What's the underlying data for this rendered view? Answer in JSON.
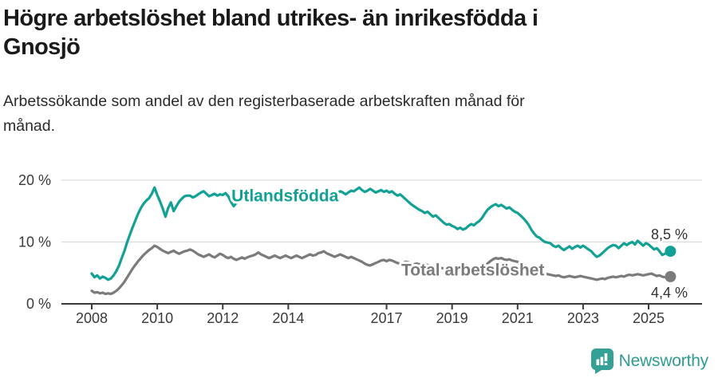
{
  "header": {
    "title_lines": [
      "Högre arbetslöshet bland utrikes- än inrikesfödda i",
      "Gnosjö"
    ],
    "subtitle_lines": [
      "Arbetssökande som andel av den registerbaserade arbetskraften månad för",
      "månad."
    ]
  },
  "footer": {
    "brand": "Newsworthy",
    "logo_icon": "bar-chart-speech-bubble",
    "brand_color": "#2f9c92"
  },
  "colors": {
    "foreign_born_line": "#12a195",
    "total_line": "#7b7b7b",
    "axis": "#3a3a3a",
    "gridline": "#dddddd",
    "value_label": "#333333",
    "title": "#1a1a1a"
  },
  "chart_data": {
    "type": "line",
    "title": "Högre arbetslöshet bland utrikes- än inrikesfödda i Gnosjö",
    "subtitle": "Arbetssökande som andel av den registerbaserade arbetskraften månad för månad.",
    "unit": "%",
    "x_start_year": 2008,
    "points_per_year": 12,
    "x_tick_years": [
      2008,
      2010,
      2012,
      2014,
      2017,
      2019,
      2021,
      2023,
      2025
    ],
    "x_tick_labels": [
      "2008",
      "2010",
      "2012",
      "2014",
      "2017",
      "2019",
      "2021",
      "2023",
      "2025"
    ],
    "y_ticks": [
      {
        "value": 0,
        "label": "0 %"
      },
      {
        "value": 10,
        "label": "10 %"
      },
      {
        "value": 20,
        "label": "20 %"
      }
    ],
    "ylim": [
      0,
      21
    ],
    "grid": true,
    "legend_position": "inline-labels",
    "series": [
      {
        "name": "Utlandsfödda",
        "color": "#12a195",
        "end_label": "8,5 %",
        "end_value": 8.5,
        "label_pos": {
          "x_year": 2013.9,
          "y_value": 16.6,
          "anchor": "middle"
        },
        "end_label_dy": -15,
        "values": [
          4.9,
          4.3,
          4.6,
          4.1,
          4.4,
          4.2,
          3.9,
          4.1,
          4.6,
          5.3,
          6.2,
          7.4,
          8.6,
          10.0,
          11.2,
          12.4,
          13.5,
          14.6,
          15.5,
          16.2,
          16.7,
          17.1,
          17.8,
          18.8,
          17.6,
          16.6,
          15.4,
          14.1,
          15.5,
          16.4,
          15.0,
          15.8,
          16.5,
          17.0,
          17.4,
          17.5,
          17.5,
          17.2,
          17.4,
          17.7,
          18.0,
          18.2,
          17.8,
          17.4,
          17.6,
          17.8,
          17.5,
          17.7,
          17.6,
          17.9,
          17.4,
          16.5,
          15.8,
          16.3,
          17.0,
          17.4,
          17.2,
          16.8,
          17.0,
          17.3,
          17.2,
          17.5,
          17.8,
          17.4,
          17.0,
          16.4,
          16.8,
          17.3,
          17.7,
          18.0,
          17.6,
          17.4,
          17.8,
          18.1,
          18.3,
          17.9,
          17.5,
          17.1,
          17.4,
          17.8,
          17.5,
          17.2,
          17.6,
          17.9,
          18.0,
          18.3,
          18.5,
          18.2,
          17.8,
          17.5,
          17.9,
          18.2,
          18.0,
          17.7,
          18.0,
          18.3,
          18.2,
          18.5,
          18.8,
          18.4,
          18.1,
          18.3,
          18.6,
          18.3,
          18.0,
          18.2,
          18.4,
          18.1,
          18.3,
          18.0,
          18.2,
          17.8,
          17.5,
          17.7,
          17.3,
          16.9,
          16.5,
          16.1,
          15.8,
          15.5,
          15.2,
          15.0,
          14.7,
          14.9,
          14.5,
          14.1,
          14.3,
          13.9,
          13.5,
          13.1,
          12.8,
          12.9,
          12.6,
          12.4,
          12.1,
          12.3,
          12.0,
          12.2,
          12.6,
          12.9,
          12.7,
          13.1,
          13.4,
          13.9,
          14.6,
          15.2,
          15.6,
          15.9,
          16.1,
          15.8,
          16.0,
          15.7,
          15.4,
          15.6,
          15.2,
          14.9,
          14.7,
          14.3,
          13.9,
          13.4,
          12.8,
          12.0,
          11.4,
          10.9,
          10.7,
          10.3,
          10.0,
          9.9,
          9.8,
          9.4,
          9.2,
          9.4,
          9.0,
          8.7,
          9.0,
          9.3,
          8.9,
          9.2,
          9.4,
          9.1,
          9.4,
          9.1,
          8.8,
          8.5,
          8.0,
          7.6,
          7.8,
          8.2,
          8.6,
          9.0,
          9.3,
          9.5,
          9.4,
          9.0,
          9.4,
          9.8,
          9.5,
          9.8,
          10.0,
          9.6,
          10.2,
          9.8,
          9.4,
          9.8,
          9.6,
          9.2,
          8.8,
          9.0,
          8.5,
          7.9,
          8.1,
          8.3,
          8.5
        ]
      },
      {
        "name": "Total arbetslöshet",
        "color": "#7b7b7b",
        "end_label": "4,4 %",
        "end_value": 4.4,
        "label_pos": {
          "x_year": 2017.45,
          "y_value": 4.6,
          "anchor": "start"
        },
        "end_label_dy": 26,
        "values": [
          2.1,
          1.8,
          1.9,
          1.7,
          1.8,
          1.6,
          1.7,
          1.6,
          1.8,
          2.1,
          2.5,
          3.0,
          3.6,
          4.3,
          5.0,
          5.7,
          6.3,
          6.9,
          7.4,
          7.9,
          8.3,
          8.7,
          9.0,
          9.4,
          9.2,
          8.9,
          8.6,
          8.4,
          8.2,
          8.4,
          8.6,
          8.3,
          8.1,
          8.3,
          8.5,
          8.6,
          8.8,
          8.6,
          8.3,
          8.0,
          7.8,
          7.6,
          7.8,
          8.0,
          7.7,
          7.5,
          7.8,
          8.1,
          7.9,
          7.6,
          7.4,
          7.6,
          7.3,
          7.1,
          7.3,
          7.5,
          7.3,
          7.5,
          7.7,
          7.8,
          8.0,
          8.3,
          8.0,
          7.8,
          7.6,
          7.4,
          7.6,
          7.8,
          7.6,
          7.4,
          7.6,
          7.8,
          7.6,
          7.4,
          7.6,
          7.8,
          7.6,
          7.4,
          7.6,
          7.8,
          8.0,
          7.8,
          7.9,
          8.2,
          8.3,
          8.5,
          8.2,
          8.0,
          7.8,
          7.6,
          7.8,
          8.0,
          7.8,
          7.6,
          7.4,
          7.6,
          7.4,
          7.2,
          7.0,
          6.8,
          6.5,
          6.3,
          6.2,
          6.4,
          6.6,
          6.8,
          7.0,
          7.1,
          6.9,
          7.1,
          7.0,
          6.8,
          6.6,
          6.5,
          6.6,
          6.8,
          6.7,
          6.5,
          6.4,
          6.5,
          6.4,
          6.3,
          6.2,
          6.3,
          6.1,
          6.0,
          5.9,
          6.0,
          5.8,
          5.7,
          5.8,
          5.9,
          5.8,
          5.7,
          5.6,
          5.7,
          5.5,
          5.4,
          5.5,
          5.6,
          5.5,
          5.6,
          5.8,
          6.0,
          6.2,
          6.5,
          6.9,
          7.2,
          7.4,
          7.3,
          7.4,
          7.2,
          7.1,
          7.2,
          7.0,
          6.9,
          6.8,
          6.6,
          6.4,
          6.2,
          6.0,
          5.8,
          5.6,
          5.4,
          5.2,
          5.0,
          4.9,
          4.8,
          4.7,
          4.6,
          4.5,
          4.6,
          4.4,
          4.3,
          4.4,
          4.5,
          4.4,
          4.3,
          4.4,
          4.5,
          4.4,
          4.3,
          4.2,
          4.1,
          4.0,
          3.9,
          4.0,
          4.1,
          4.0,
          4.2,
          4.3,
          4.4,
          4.3,
          4.4,
          4.5,
          4.4,
          4.6,
          4.7,
          4.6,
          4.7,
          4.8,
          4.7,
          4.6,
          4.7,
          4.8,
          4.9,
          4.7,
          4.5,
          4.6,
          4.4,
          4.3,
          4.3,
          4.4
        ]
      }
    ]
  }
}
